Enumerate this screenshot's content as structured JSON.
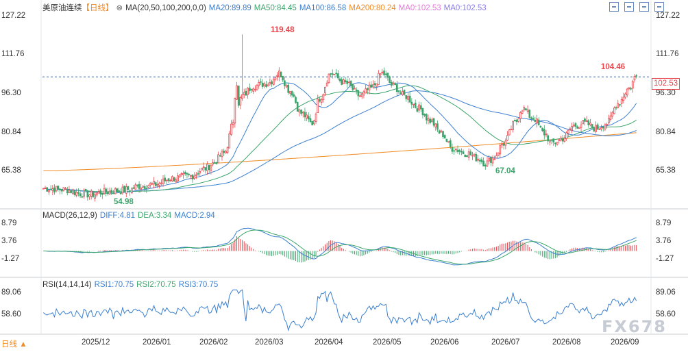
{
  "header": {
    "symbol": "美原油连续",
    "period_tag": "【日线】",
    "ma_label": "MA(20,50,100,200,0,0)",
    "ma20": "MA20:89.89",
    "ma50": "MA50:84.45",
    "ma100": "MA100:86.58",
    "ma200": "MA200:80.24",
    "ma0a": "MA0:102.53",
    "ma0b": "MA0:102.53"
  },
  "macd_header": {
    "label": "MACD(26,12,9)",
    "diff": "DIFF:4.81",
    "dea": "DEA:3.34",
    "macd": "MACD:2.94"
  },
  "rsi_header": {
    "label": "RSI(14,14,14)",
    "rsi1": "RSI1:70.75",
    "rsi2": "RSI2:70.75",
    "rsi3": "RSI3:70.75"
  },
  "price_axis": [
    "127.22",
    "111.76",
    "96.30",
    "80.84",
    "65.38"
  ],
  "macd_axis": [
    "8.79",
    "3.76",
    "-1.27"
  ],
  "rsi_axis": [
    "89.06",
    "58.60"
  ],
  "current_price": "102.53",
  "annotations": {
    "high": "119.48",
    "low1": "54.98",
    "low2": "67.04",
    "recent_high": "104.46"
  },
  "x_labels": [
    "2025/12",
    "2026/01",
    "2026/02",
    "2026/03",
    "2026/04",
    "2026/05",
    "2026/06",
    "2026/07",
    "2026/08",
    "2026/09"
  ],
  "period_button": "日线 ▲",
  "watermark": "FX678",
  "colors": {
    "up": "#e8474d",
    "down": "#3aa56a",
    "ma20": "#3a7fd0",
    "ma50": "#3aa56a",
    "ma100": "#3a7fd0",
    "ma200": "#f08a24",
    "ma0": "#e07bd8"
  },
  "chart_data": {
    "type": "candlestick",
    "ylim": [
      55,
      127.22
    ],
    "anchors": [
      [
        0,
        58
      ],
      [
        12,
        57.5
      ],
      [
        20,
        56
      ],
      [
        26,
        55.5
      ],
      [
        32,
        56.5
      ],
      [
        40,
        57
      ],
      [
        46,
        57.5
      ],
      [
        52,
        59
      ],
      [
        60,
        59.5
      ],
      [
        70,
        62
      ],
      [
        80,
        63
      ],
      [
        88,
        66
      ],
      [
        92,
        68
      ],
      [
        98,
        72
      ],
      [
        104,
        86
      ],
      [
        108,
        95
      ],
      [
        114,
        99
      ],
      [
        122,
        100
      ],
      [
        128,
        104
      ],
      [
        134,
        97
      ],
      [
        140,
        88
      ],
      [
        146,
        84
      ],
      [
        150,
        94
      ],
      [
        156,
        104
      ],
      [
        164,
        100
      ],
      [
        172,
        95
      ],
      [
        178,
        98
      ],
      [
        184,
        104
      ],
      [
        190,
        99
      ],
      [
        196,
        95
      ],
      [
        204,
        90
      ],
      [
        210,
        85
      ],
      [
        216,
        80
      ],
      [
        222,
        74
      ],
      [
        230,
        72
      ],
      [
        236,
        70
      ],
      [
        240,
        68
      ],
      [
        244,
        70
      ],
      [
        250,
        76
      ],
      [
        256,
        84
      ],
      [
        260,
        90
      ],
      [
        266,
        86
      ],
      [
        272,
        80
      ],
      [
        276,
        76
      ],
      [
        282,
        78
      ],
      [
        288,
        83
      ],
      [
        294,
        84
      ],
      [
        300,
        82
      ],
      [
        306,
        84
      ],
      [
        312,
        92
      ],
      [
        318,
        98
      ],
      [
        322,
        103
      ]
    ],
    "ma200_range": [
      65,
      80.24
    ],
    "macd_range": [
      -7,
      9
    ],
    "rsi_range": [
      20,
      100
    ],
    "last_values": {
      "ma20": 89.89,
      "ma50": 84.45,
      "ma100": 86.58,
      "ma200": 80.24,
      "diff": 4.81,
      "dea": 3.34,
      "macd": 2.94,
      "rsi": 70.75
    }
  }
}
